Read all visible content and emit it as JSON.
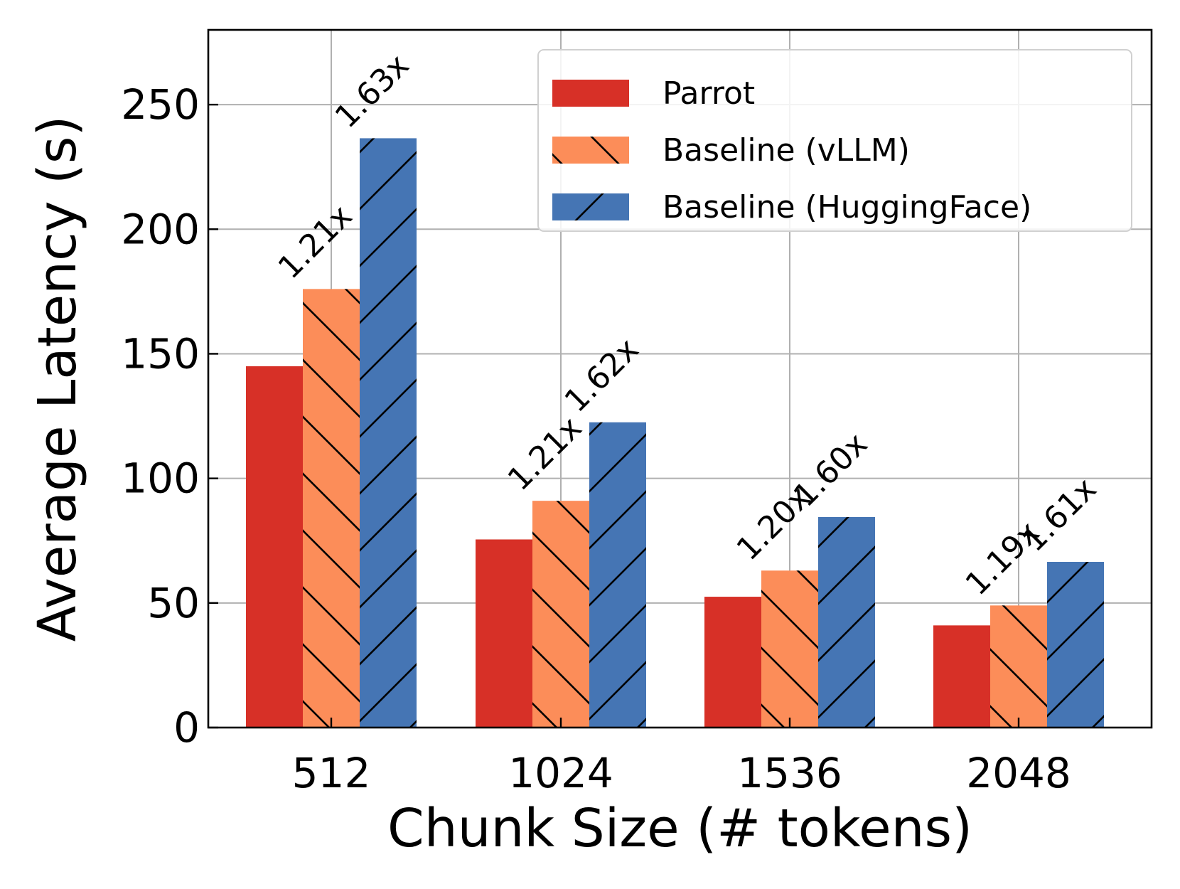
{
  "chart_data": {
    "type": "bar",
    "title": "",
    "xlabel": "Chunk Size (# tokens)",
    "ylabel": "Average Latency (s)",
    "categories": [
      "512",
      "1024",
      "1536",
      "2048"
    ],
    "ylim": [
      0,
      280
    ],
    "yticks": [
      0,
      50,
      100,
      150,
      200,
      250
    ],
    "grid": true,
    "legend_position": "top-right",
    "series": [
      {
        "name": "Parrot",
        "values": [
          145,
          75.5,
          52.5,
          41
        ],
        "color": "#d73027",
        "hatch": "none"
      },
      {
        "name": "Baseline (vLLM)",
        "values": [
          176,
          91,
          63,
          49
        ],
        "color": "#fc8d59",
        "hatch": "backslash"
      },
      {
        "name": "Baseline (HuggingFace)",
        "values": [
          236.5,
          122.5,
          84.5,
          66.5
        ],
        "color": "#4575b4",
        "hatch": "slash"
      }
    ],
    "annotations": [
      {
        "category": "512",
        "series": "Baseline (vLLM)",
        "text": "1.21x"
      },
      {
        "category": "512",
        "series": "Baseline (HuggingFace)",
        "text": "1.63x"
      },
      {
        "category": "1024",
        "series": "Baseline (vLLM)",
        "text": "1.21x"
      },
      {
        "category": "1024",
        "series": "Baseline (HuggingFace)",
        "text": "1.62x"
      },
      {
        "category": "1536",
        "series": "Baseline (vLLM)",
        "text": "1.20x"
      },
      {
        "category": "1536",
        "series": "Baseline (HuggingFace)",
        "text": "1.60x"
      },
      {
        "category": "2048",
        "series": "Baseline (vLLM)",
        "text": "1.19x"
      },
      {
        "category": "2048",
        "series": "Baseline (HuggingFace)",
        "text": "1.61x"
      }
    ]
  }
}
